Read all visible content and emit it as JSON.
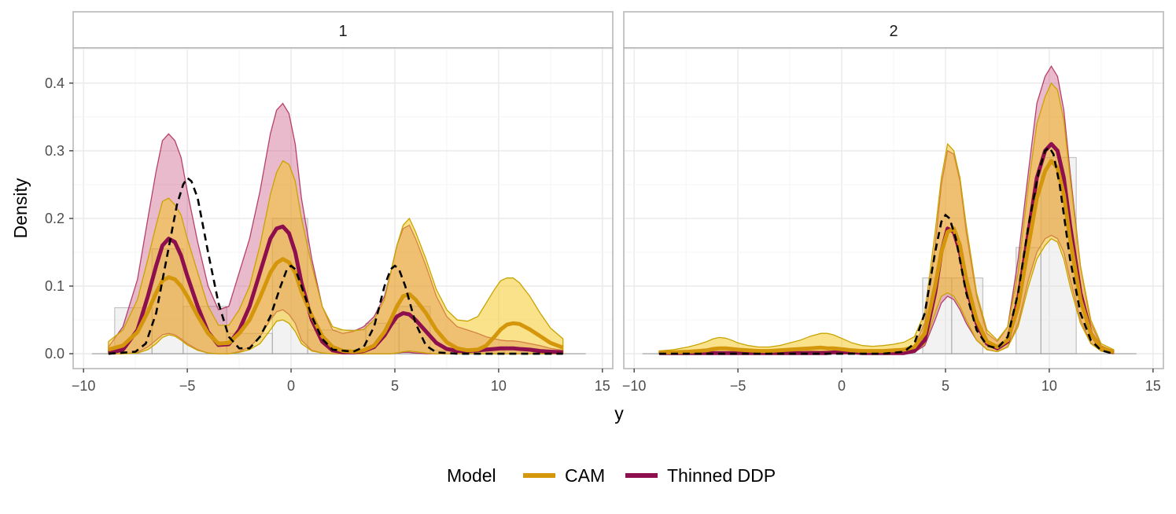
{
  "chart_data": {
    "type": "area",
    "xlabel": "y",
    "ylabel": "Density",
    "xlim": [
      -10.5,
      15.5
    ],
    "ylim": [
      -0.022,
      0.452
    ],
    "x_ticks": [
      -10,
      -5,
      0,
      5,
      10,
      15
    ],
    "y_ticks": [
      0.0,
      0.1,
      0.2,
      0.3,
      0.4
    ],
    "x_tick_labels": [
      "−10",
      "−5",
      "0",
      "5",
      "10",
      "15"
    ],
    "y_tick_labels": [
      "0.0",
      "0.1",
      "0.2",
      "0.3",
      "0.4"
    ],
    "grid": true,
    "legend": {
      "title": "Model",
      "position": "bottom",
      "entries": [
        {
          "label": "CAM",
          "color": "#d4960a"
        },
        {
          "label": "Thinned DDP",
          "color": "#8e0f4e"
        }
      ]
    },
    "colors": {
      "cam_line": "#d4960a",
      "cam_band": "#f5c518",
      "cam_band_edge": "#c9a400",
      "ddp_line": "#8e0f4e",
      "ddp_band": "#c9517f",
      "ddp_band_edge": "#b0305e",
      "truth_line": "#000000",
      "hist_fill": "#d9d9d9",
      "hist_edge": "#9e9e9e"
    },
    "x_grid": [
      -8.8,
      -8.1,
      -7.4,
      -6.9,
      -6.5,
      -6.2,
      -5.9,
      -5.6,
      -5.3,
      -5.0,
      -4.5,
      -4.0,
      -3.5,
      -3.0,
      -2.5,
      -2.0,
      -1.5,
      -1.0,
      -0.7,
      -0.4,
      -0.1,
      0.2,
      0.5,
      1.0,
      1.5,
      2.0,
      2.5,
      3.0,
      3.5,
      4.0,
      4.5,
      4.8,
      5.1,
      5.4,
      5.7,
      6.0,
      6.5,
      7.0,
      7.5,
      8.0,
      8.5,
      9.0,
      9.4,
      9.8,
      10.1,
      10.4,
      10.7,
      11.0,
      11.5,
      12.0,
      12.5,
      13.1
    ],
    "panels": [
      {
        "strip": "1",
        "histogram": [
          {
            "x0": -8.5,
            "x1": -6.7,
            "y": 0.068
          },
          {
            "x0": -6.7,
            "x1": -5.2,
            "y": 0.155
          },
          {
            "x0": -5.2,
            "x1": -3.1,
            "y": 0.07
          },
          {
            "x0": -3.1,
            "x1": -0.9,
            "y": 0.03
          },
          {
            "x0": -0.9,
            "x1": 0.8,
            "y": 0.2
          },
          {
            "x0": 0.8,
            "x1": 3.6,
            "y": 0.035
          },
          {
            "x0": 3.6,
            "x1": 5.2,
            "y": 0.045
          },
          {
            "x0": 5.2,
            "x1": 6.7,
            "y": 0.07
          },
          {
            "x0": 6.7,
            "x1": 10.3,
            "y": 0.005
          },
          {
            "x0": 10.3,
            "x1": 14.2,
            "y": 0.0
          }
        ],
        "truth": {
          "x": [
            -8.8,
            -7.5,
            -7.0,
            -6.5,
            -6.0,
            -5.5,
            -5.2,
            -5.0,
            -4.8,
            -4.5,
            -4.0,
            -3.5,
            -3.0,
            -2.5,
            -2.0,
            -1.5,
            -1.0,
            -0.5,
            -0.2,
            0.0,
            0.2,
            0.5,
            1.0,
            1.5,
            2.0,
            3.0,
            3.5,
            4.0,
            4.5,
            4.8,
            5.0,
            5.2,
            5.5,
            6.0,
            6.5,
            7.0,
            8.0,
            10.0,
            12.0,
            13.1
          ],
          "y": [
            0.0,
            0.003,
            0.015,
            0.06,
            0.14,
            0.22,
            0.25,
            0.26,
            0.255,
            0.23,
            0.15,
            0.075,
            0.025,
            0.008,
            0.008,
            0.025,
            0.055,
            0.1,
            0.125,
            0.13,
            0.125,
            0.1,
            0.055,
            0.022,
            0.006,
            0.003,
            0.01,
            0.04,
            0.1,
            0.125,
            0.13,
            0.125,
            0.1,
            0.045,
            0.012,
            0.002,
            0.0,
            0.0,
            0.0,
            0.0
          ]
        },
        "cam": {
          "mean": [
            0.006,
            0.012,
            0.032,
            0.062,
            0.09,
            0.108,
            0.113,
            0.11,
            0.1,
            0.085,
            0.056,
            0.03,
            0.015,
            0.016,
            0.03,
            0.05,
            0.083,
            0.12,
            0.134,
            0.14,
            0.135,
            0.12,
            0.092,
            0.056,
            0.026,
            0.01,
            0.004,
            0.003,
            0.005,
            0.012,
            0.032,
            0.05,
            0.07,
            0.085,
            0.088,
            0.08,
            0.06,
            0.035,
            0.017,
            0.008,
            0.005,
            0.006,
            0.012,
            0.025,
            0.036,
            0.043,
            0.045,
            0.044,
            0.036,
            0.026,
            0.016,
            0.009
          ],
          "lower": [
            0.0,
            0.0,
            0.001,
            0.006,
            0.015,
            0.024,
            0.028,
            0.026,
            0.02,
            0.013,
            0.005,
            0.001,
            0.0,
            0.0,
            0.002,
            0.006,
            0.015,
            0.035,
            0.048,
            0.05,
            0.045,
            0.033,
            0.015,
            0.004,
            0.001,
            0.0,
            0.0,
            0.0,
            0.0,
            0.0,
            0.0,
            0.0,
            0.001,
            0.003,
            0.004,
            0.003,
            0.001,
            0.0,
            0.0,
            0.0,
            0.0,
            0.0,
            0.0,
            0.0,
            0.0,
            0.0,
            0.0,
            0.0,
            0.0,
            0.0,
            0.0,
            0.0
          ],
          "upper": [
            0.018,
            0.035,
            0.08,
            0.14,
            0.19,
            0.225,
            0.23,
            0.22,
            0.205,
            0.17,
            0.12,
            0.07,
            0.042,
            0.042,
            0.065,
            0.1,
            0.16,
            0.235,
            0.268,
            0.285,
            0.28,
            0.255,
            0.2,
            0.13,
            0.07,
            0.04,
            0.035,
            0.034,
            0.036,
            0.05,
            0.08,
            0.12,
            0.16,
            0.19,
            0.2,
            0.18,
            0.14,
            0.095,
            0.065,
            0.05,
            0.048,
            0.055,
            0.075,
            0.095,
            0.108,
            0.112,
            0.112,
            0.105,
            0.085,
            0.06,
            0.038,
            0.022
          ]
        },
        "ddp": {
          "mean": [
            0.001,
            0.006,
            0.035,
            0.085,
            0.13,
            0.16,
            0.17,
            0.165,
            0.145,
            0.115,
            0.07,
            0.032,
            0.013,
            0.014,
            0.035,
            0.07,
            0.12,
            0.17,
            0.185,
            0.188,
            0.178,
            0.15,
            0.105,
            0.05,
            0.018,
            0.005,
            0.002,
            0.002,
            0.004,
            0.01,
            0.027,
            0.042,
            0.055,
            0.06,
            0.058,
            0.05,
            0.033,
            0.016,
            0.007,
            0.004,
            0.004,
            0.005,
            0.006,
            0.007,
            0.008,
            0.008,
            0.008,
            0.007,
            0.006,
            0.004,
            0.003,
            0.002
          ],
          "lower": [
            0.0,
            0.0,
            0.002,
            0.01,
            0.02,
            0.028,
            0.03,
            0.028,
            0.022,
            0.015,
            0.006,
            0.001,
            0.0,
            0.0,
            0.003,
            0.01,
            0.025,
            0.05,
            0.062,
            0.065,
            0.058,
            0.045,
            0.02,
            0.005,
            0.001,
            0.0,
            0.0,
            0.0,
            0.0,
            0.0,
            0.0,
            0.0,
            0.001,
            0.002,
            0.002,
            0.001,
            0.0,
            0.0,
            0.0,
            0.0,
            0.0,
            0.0,
            0.0,
            0.0,
            0.0,
            0.0,
            0.0,
            0.0,
            0.0,
            0.0,
            0.0,
            0.0
          ],
          "upper": [
            0.01,
            0.04,
            0.11,
            0.2,
            0.27,
            0.315,
            0.325,
            0.315,
            0.29,
            0.24,
            0.165,
            0.1,
            0.065,
            0.07,
            0.12,
            0.17,
            0.24,
            0.325,
            0.36,
            0.37,
            0.355,
            0.31,
            0.23,
            0.14,
            0.07,
            0.035,
            0.03,
            0.033,
            0.04,
            0.055,
            0.085,
            0.12,
            0.16,
            0.185,
            0.19,
            0.17,
            0.13,
            0.085,
            0.055,
            0.04,
            0.035,
            0.03,
            0.025,
            0.022,
            0.02,
            0.019,
            0.019,
            0.018,
            0.015,
            0.012,
            0.008,
            0.005
          ]
        }
      },
      {
        "strip": "2",
        "histogram": [
          {
            "x0": 3.9,
            "x1": 5.3,
            "y": 0.112
          },
          {
            "x0": 5.3,
            "x1": 6.8,
            "y": 0.112
          },
          {
            "x0": 8.4,
            "x1": 9.6,
            "y": 0.157
          },
          {
            "x0": 9.6,
            "x1": 11.3,
            "y": 0.29
          }
        ],
        "truth": {
          "x": [
            -8.8,
            -3.0,
            0.0,
            2.0,
            3.0,
            3.5,
            4.0,
            4.5,
            4.8,
            5.0,
            5.2,
            5.5,
            6.0,
            6.5,
            7.0,
            7.5,
            8.0,
            8.5,
            9.0,
            9.5,
            9.8,
            10.0,
            10.2,
            10.5,
            11.0,
            11.5,
            12.0,
            12.5,
            13.1
          ],
          "y": [
            0.0,
            0.0,
            0.0,
            0.0,
            0.003,
            0.015,
            0.06,
            0.15,
            0.195,
            0.205,
            0.2,
            0.17,
            0.09,
            0.035,
            0.012,
            0.008,
            0.025,
            0.09,
            0.19,
            0.27,
            0.3,
            0.305,
            0.295,
            0.25,
            0.14,
            0.06,
            0.02,
            0.005,
            0.0
          ]
        },
        "cam": {
          "mean": [
            0.002,
            0.002,
            0.003,
            0.004,
            0.005,
            0.007,
            0.008,
            0.008,
            0.007,
            0.006,
            0.005,
            0.004,
            0.004,
            0.005,
            0.006,
            0.007,
            0.008,
            0.009,
            0.008,
            0.008,
            0.007,
            0.006,
            0.005,
            0.004,
            0.004,
            0.004,
            0.005,
            0.006,
            0.01,
            0.03,
            0.1,
            0.15,
            0.18,
            0.185,
            0.16,
            0.11,
            0.05,
            0.018,
            0.01,
            0.02,
            0.07,
            0.16,
            0.23,
            0.27,
            0.285,
            0.275,
            0.235,
            0.17,
            0.08,
            0.03,
            0.008,
            0.003
          ],
          "lower": [
            0.0,
            0.0,
            0.0,
            0.0,
            0.0,
            0.0,
            0.0,
            0.0,
            0.0,
            0.0,
            0.0,
            0.0,
            0.0,
            0.0,
            0.0,
            0.0,
            0.0,
            0.0,
            0.0,
            0.0,
            0.0,
            0.0,
            0.0,
            0.0,
            0.0,
            0.0,
            0.0,
            0.0,
            0.002,
            0.015,
            0.06,
            0.085,
            0.09,
            0.085,
            0.07,
            0.05,
            0.02,
            0.006,
            0.003,
            0.01,
            0.04,
            0.1,
            0.14,
            0.16,
            0.17,
            0.165,
            0.14,
            0.1,
            0.045,
            0.015,
            0.004,
            0.0
          ],
          "upper": [
            0.004,
            0.006,
            0.01,
            0.014,
            0.018,
            0.022,
            0.024,
            0.023,
            0.02,
            0.016,
            0.012,
            0.01,
            0.01,
            0.012,
            0.016,
            0.02,
            0.026,
            0.03,
            0.03,
            0.028,
            0.024,
            0.02,
            0.016,
            0.012,
            0.011,
            0.012,
            0.014,
            0.017,
            0.025,
            0.06,
            0.18,
            0.26,
            0.31,
            0.3,
            0.26,
            0.19,
            0.09,
            0.035,
            0.02,
            0.04,
            0.12,
            0.25,
            0.34,
            0.38,
            0.4,
            0.39,
            0.345,
            0.26,
            0.13,
            0.05,
            0.015,
            0.006
          ]
        },
        "ddp": {
          "mean": [
            0.001,
            0.001,
            0.001,
            0.001,
            0.001,
            0.001,
            0.001,
            0.001,
            0.001,
            0.001,
            0.001,
            0.001,
            0.001,
            0.001,
            0.001,
            0.001,
            0.001,
            0.001,
            0.001,
            0.002,
            0.002,
            0.002,
            0.002,
            0.001,
            0.001,
            0.001,
            0.001,
            0.001,
            0.004,
            0.02,
            0.09,
            0.15,
            0.185,
            0.18,
            0.15,
            0.1,
            0.045,
            0.015,
            0.008,
            0.018,
            0.08,
            0.18,
            0.26,
            0.3,
            0.31,
            0.3,
            0.26,
            0.19,
            0.09,
            0.03,
            0.008,
            0.002
          ],
          "lower": [
            0.0,
            0.0,
            0.0,
            0.0,
            0.0,
            0.0,
            0.0,
            0.0,
            0.0,
            0.0,
            0.0,
            0.0,
            0.0,
            0.0,
            0.0,
            0.0,
            0.0,
            0.0,
            0.0,
            0.0,
            0.0,
            0.0,
            0.0,
            0.0,
            0.0,
            0.0,
            0.0,
            0.0,
            0.002,
            0.012,
            0.05,
            0.075,
            0.085,
            0.08,
            0.065,
            0.045,
            0.02,
            0.006,
            0.003,
            0.01,
            0.045,
            0.11,
            0.15,
            0.17,
            0.175,
            0.17,
            0.15,
            0.11,
            0.05,
            0.016,
            0.004,
            0.0
          ],
          "upper": [
            0.001,
            0.002,
            0.002,
            0.002,
            0.003,
            0.003,
            0.003,
            0.003,
            0.003,
            0.003,
            0.003,
            0.003,
            0.003,
            0.003,
            0.003,
            0.003,
            0.004,
            0.004,
            0.004,
            0.004,
            0.004,
            0.004,
            0.004,
            0.003,
            0.003,
            0.003,
            0.003,
            0.004,
            0.012,
            0.045,
            0.16,
            0.25,
            0.3,
            0.295,
            0.255,
            0.18,
            0.085,
            0.03,
            0.018,
            0.04,
            0.14,
            0.27,
            0.37,
            0.41,
            0.425,
            0.41,
            0.36,
            0.27,
            0.13,
            0.045,
            0.012,
            0.004
          ]
        }
      }
    ]
  }
}
